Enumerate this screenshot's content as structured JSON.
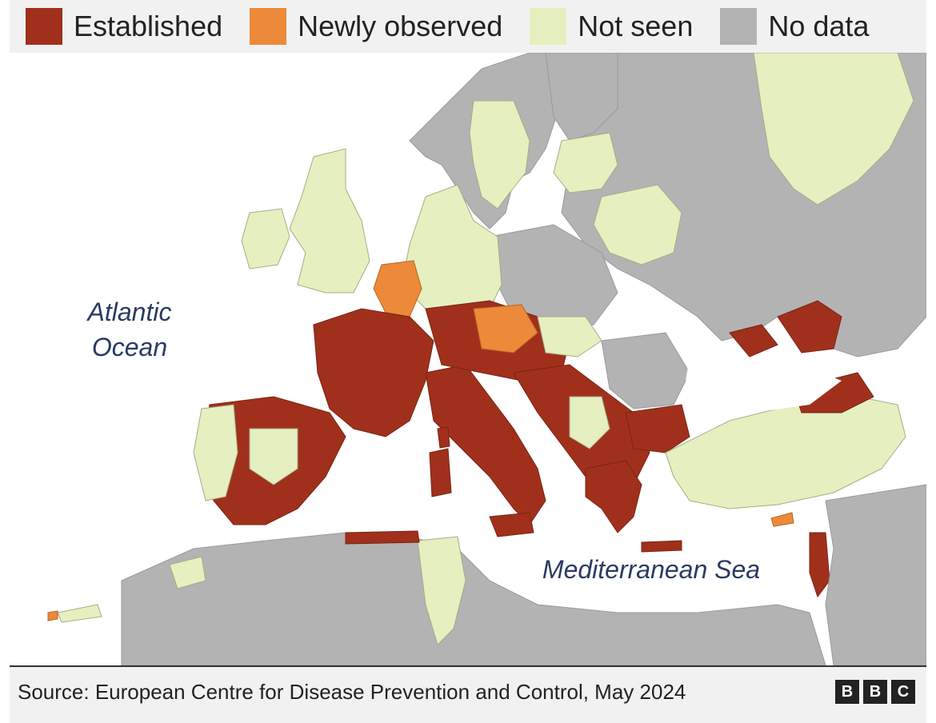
{
  "legend": {
    "items": [
      {
        "label": "Established",
        "color": "#a0301c"
      },
      {
        "label": "Newly observed",
        "color": "#ec8a3a"
      },
      {
        "label": "Not seen",
        "color": "#e6efbf"
      },
      {
        "label": "No data",
        "color": "#b3b3b3"
      }
    ]
  },
  "map": {
    "labels": {
      "atlantic": "Atlantic Ocean",
      "mediterranean": "Mediterranean Sea"
    },
    "colors": {
      "sea": "#ffffff",
      "border": "#8a8a8a"
    }
  },
  "footer": {
    "source": "Source: European Centre for Disease Prevention and Control, May 2024",
    "logo_letters": [
      "B",
      "B",
      "C"
    ]
  }
}
